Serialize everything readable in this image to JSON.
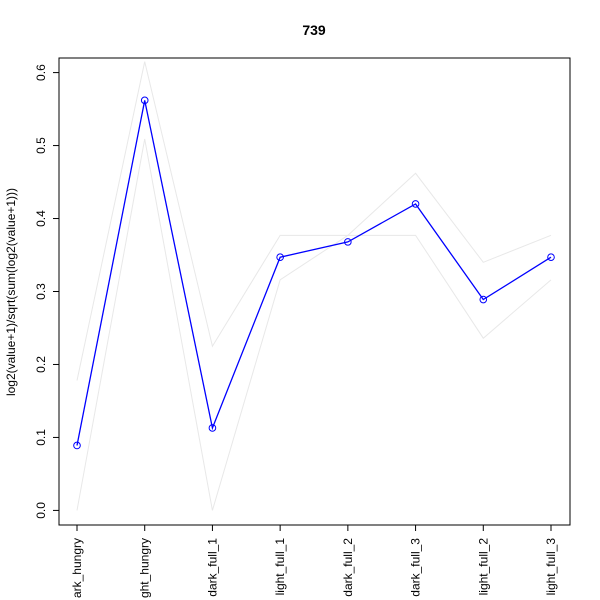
{
  "chart_data": {
    "type": "line",
    "title": "739",
    "xlabel": "",
    "ylabel": "log2(value+1)/sqrt(sum(log2(value+1)))",
    "categories": [
      "dark_hungry",
      "light_hungry",
      "dark_full_1",
      "light_full_1",
      "dark_full_2",
      "dark_full_3",
      "light_full_2",
      "light_full_3"
    ],
    "category_labels_visible": [
      "ark_hungry",
      "ght_hungry",
      "dark_full_1",
      "light_full_1",
      "dark_full_2",
      "dark_full_3",
      "light_full_2",
      "light_full_3"
    ],
    "ylim": [
      -0.02,
      0.62
    ],
    "yticks": [
      0.0,
      0.1,
      0.2,
      0.3,
      0.4,
      0.5,
      0.6
    ],
    "ytick_labels": [
      "0.0",
      "0.1",
      "0.2",
      "0.3",
      "0.4",
      "0.5",
      "0.6"
    ],
    "grid": false,
    "series": [
      {
        "role": "main",
        "values": [
          0.089,
          0.562,
          0.113,
          0.347,
          0.368,
          0.42,
          0.289,
          0.347
        ],
        "color": "#0000ff",
        "markers": "open-circle"
      },
      {
        "role": "upper-envelope",
        "values": [
          0.178,
          0.615,
          0.225,
          0.377,
          0.377,
          0.462,
          0.34,
          0.377
        ],
        "color": "#e8e8e8"
      },
      {
        "role": "lower-envelope",
        "values": [
          0.0,
          0.509,
          0.0,
          0.316,
          0.377,
          0.377,
          0.236,
          0.316
        ],
        "color": "#e8e8e8"
      }
    ]
  }
}
